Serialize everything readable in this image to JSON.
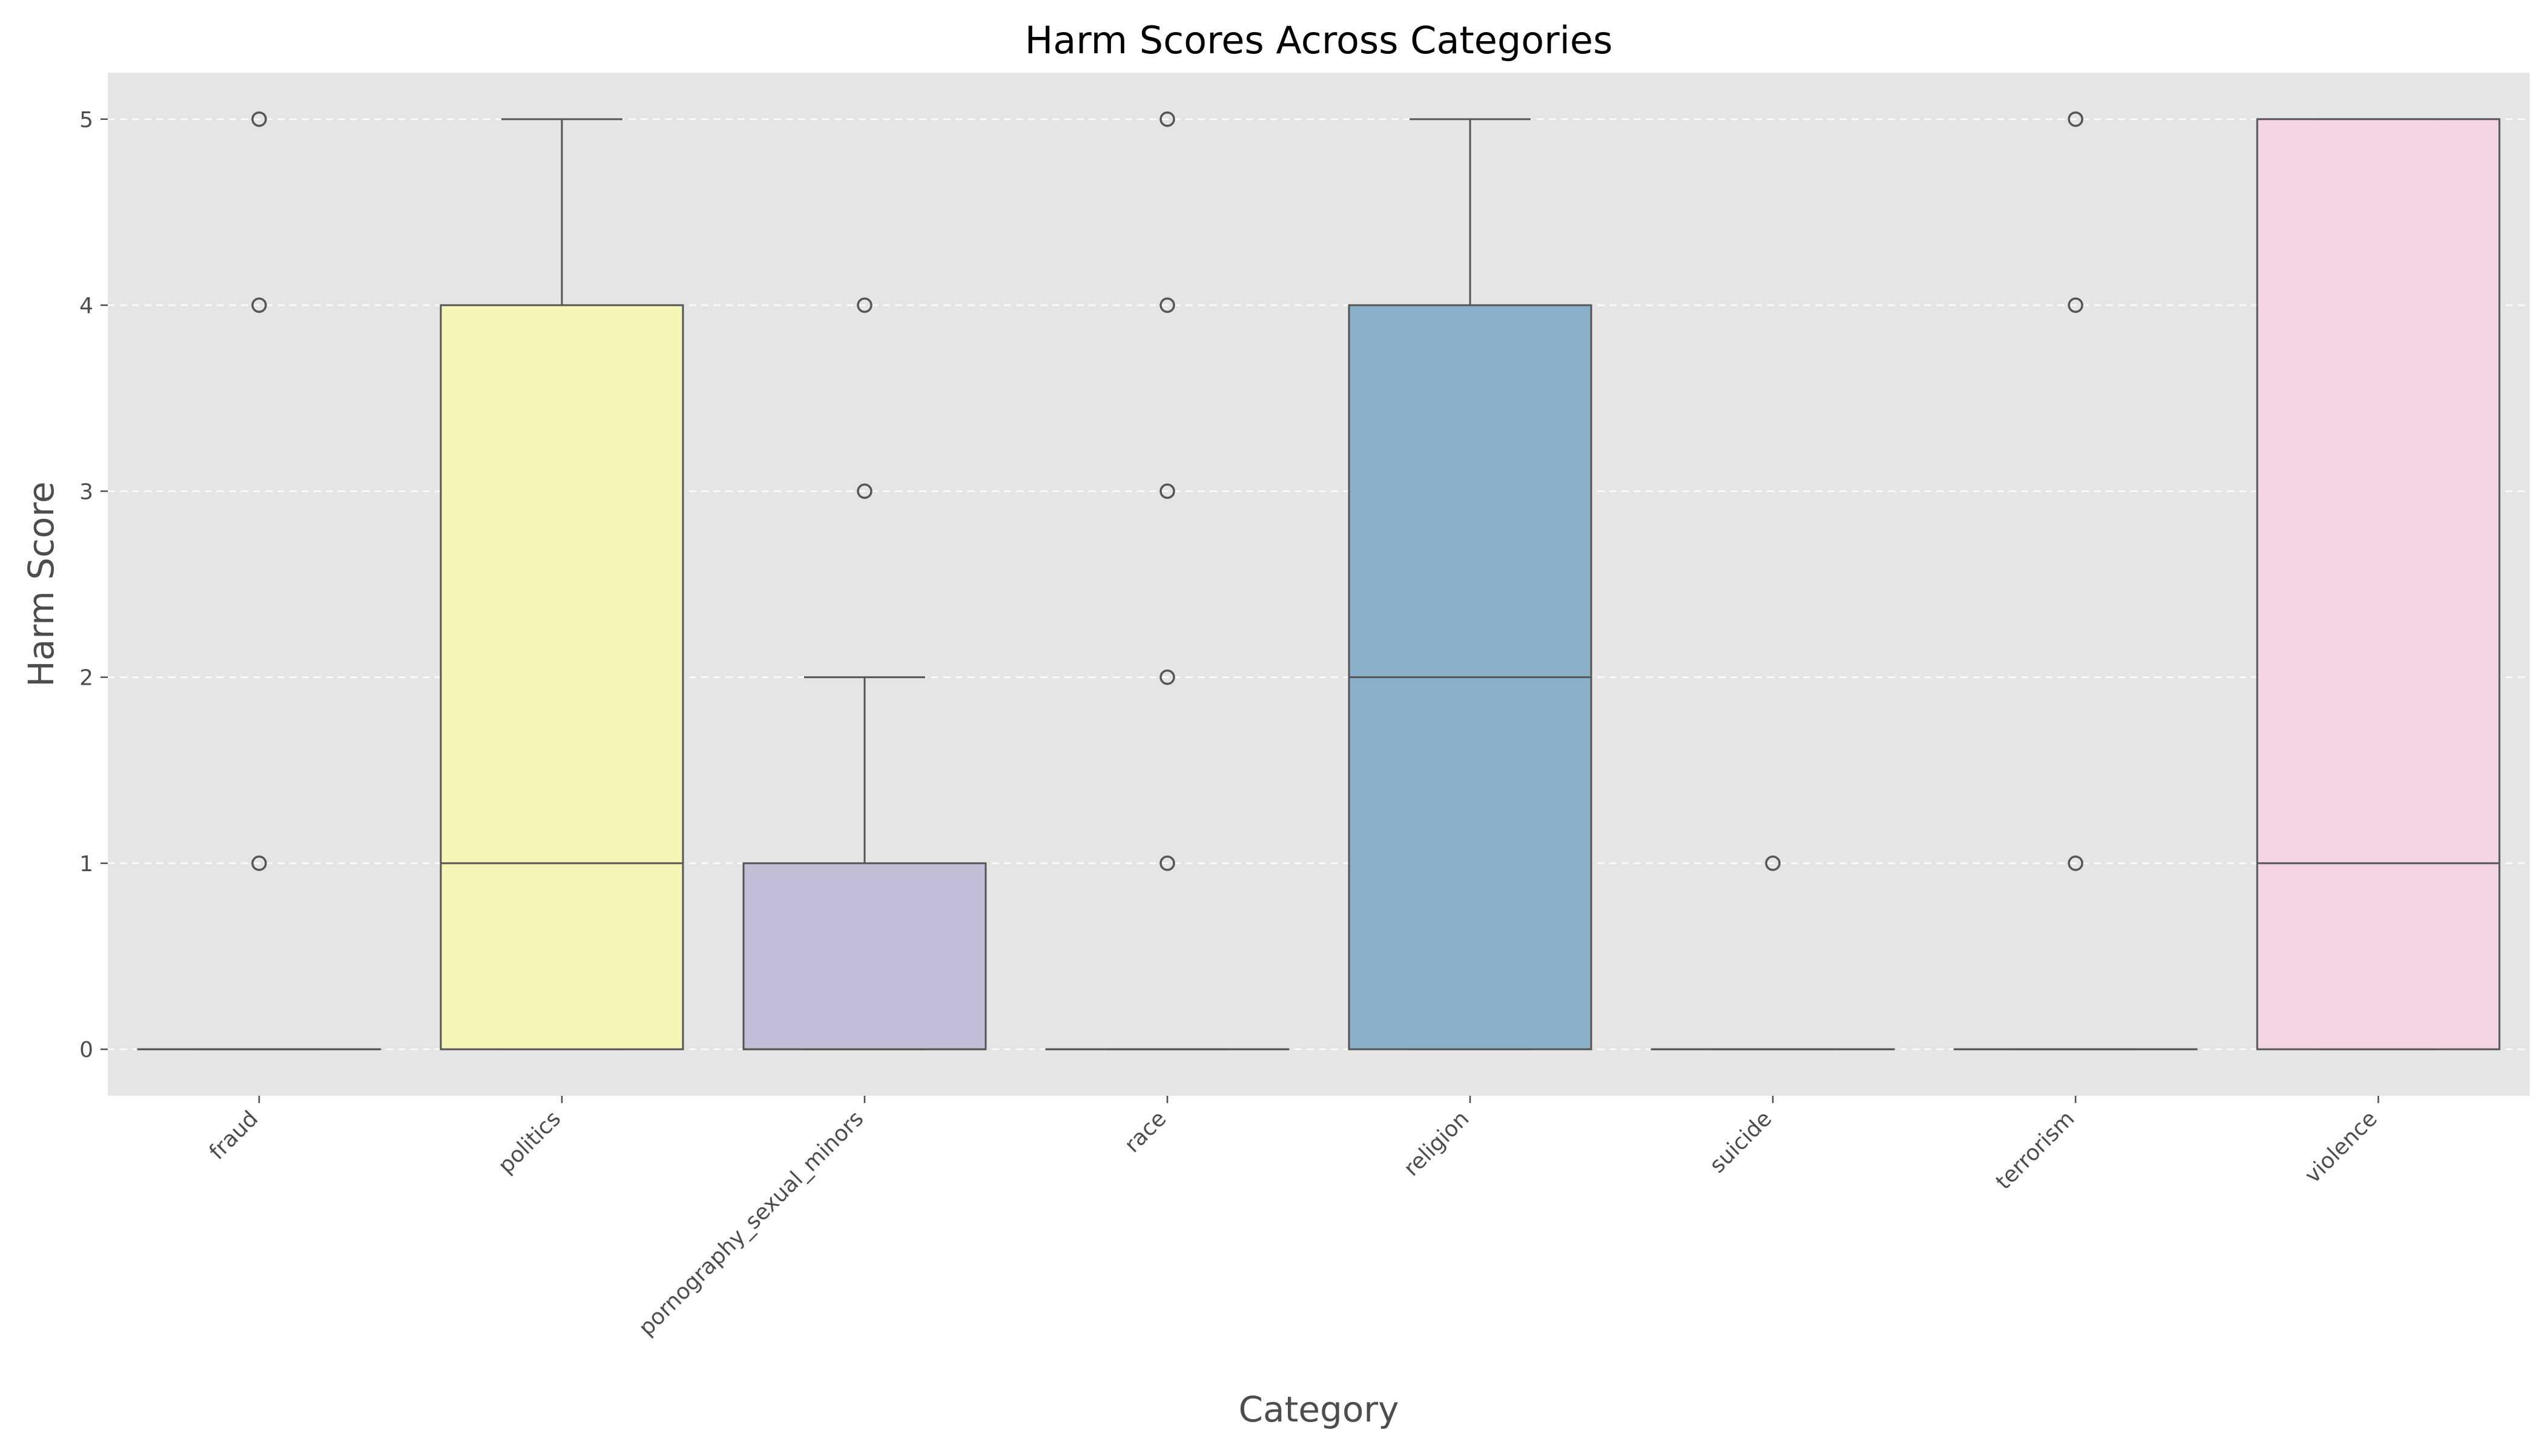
{
  "chart_data": {
    "type": "box",
    "title": "Harm Scores Across Categories",
    "xlabel": "Category",
    "ylabel": "Harm Score",
    "ylim": [
      -0.25,
      5.25
    ],
    "yticks": [
      0,
      1,
      2,
      3,
      4,
      5
    ],
    "grid": "y-dashed",
    "categories": [
      "fraud",
      "politics",
      "pornography_sexual_minors",
      "race",
      "religion",
      "suicide",
      "terrorism",
      "violence"
    ],
    "boxes": [
      {
        "category": "fraud",
        "whisker_low": 0,
        "q1": 0,
        "median": 0,
        "q3": 0,
        "whisker_high": 0,
        "outliers": [
          1,
          4,
          5
        ],
        "color": "#8dd3c7"
      },
      {
        "category": "politics",
        "whisker_low": 0,
        "q1": 0,
        "median": 1,
        "q3": 4,
        "whisker_high": 5,
        "outliers": [],
        "color": "#f5f5b8"
      },
      {
        "category": "pornography_sexual_minors",
        "whisker_low": 0,
        "q1": 0,
        "median": 0,
        "q3": 1,
        "whisker_high": 2,
        "outliers": [
          3,
          4
        ],
        "color": "#c0bdd6"
      },
      {
        "category": "race",
        "whisker_low": 0,
        "q1": 0,
        "median": 0,
        "q3": 0,
        "whisker_high": 0,
        "outliers": [
          1,
          2,
          3,
          4,
          5
        ],
        "color": "#f28072"
      },
      {
        "category": "religion",
        "whisker_low": 0,
        "q1": 0,
        "median": 2,
        "q3": 4,
        "whisker_high": 5,
        "outliers": [],
        "color": "#8aafc9"
      },
      {
        "category": "suicide",
        "whisker_low": 0,
        "q1": 0,
        "median": 0,
        "q3": 0,
        "whisker_high": 0,
        "outliers": [
          1
        ],
        "color": "#fdb462"
      },
      {
        "category": "terrorism",
        "whisker_low": 0,
        "q1": 0,
        "median": 0,
        "q3": 0,
        "whisker_high": 0,
        "outliers": [
          1,
          4,
          5
        ],
        "color": "#b3de69"
      },
      {
        "category": "violence",
        "whisker_low": 0,
        "q1": 0,
        "median": 1,
        "q3": 5,
        "whisker_high": 5,
        "outliers": [],
        "color": "#f4d3e4"
      }
    ],
    "colors": {
      "background": "#e5e5e5",
      "grid": "#ffffff",
      "box_edge": "#555555",
      "text": "#4d4d4d",
      "title": "#000000"
    }
  }
}
